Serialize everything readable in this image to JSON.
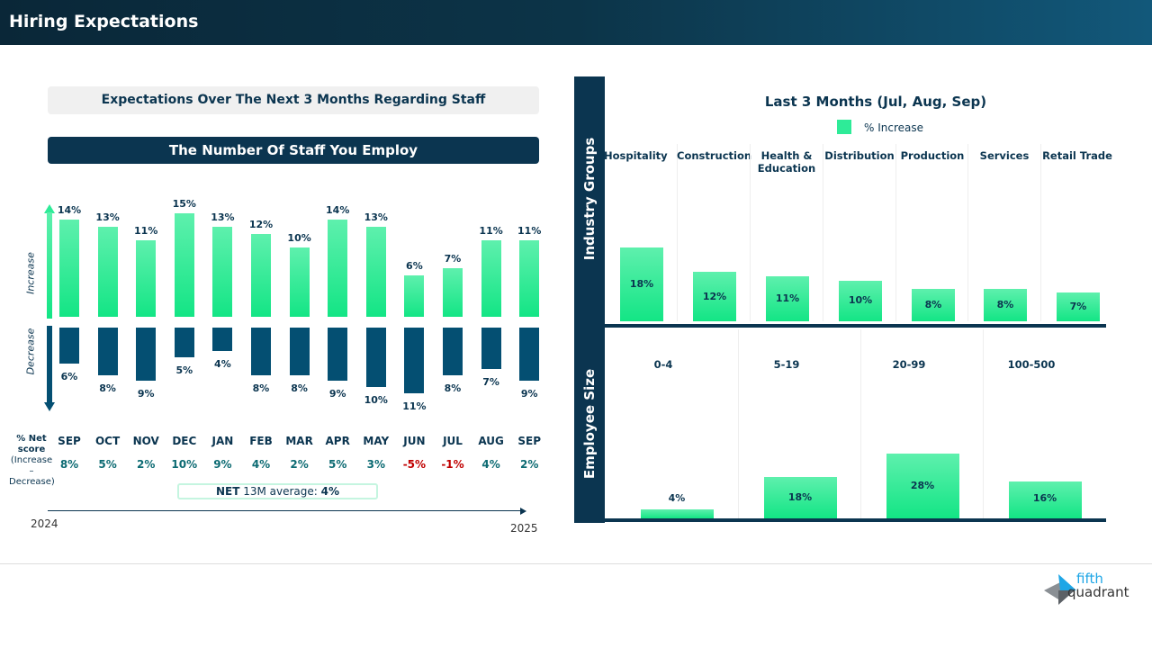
{
  "header": {
    "title": "Hiring Expectations"
  },
  "left": {
    "subtitle": "Expectations Over The Next 3 Months Regarding Staff",
    "section_title": "The Number Of Staff You Employ",
    "increase_label": "Increase",
    "decrease_label": "Decrease",
    "net_label_1": "% Net",
    "net_label_2": "score",
    "net_label_3": "(Increase –",
    "net_label_4": "Decrease)",
    "avg_prefix": "NET",
    "avg_text": " 13M average: ",
    "avg_value": "4%",
    "year_start": "2024",
    "year_end": "2025"
  },
  "chart_data": [
    {
      "type": "bar",
      "title": "The Number Of Staff You Employ",
      "categories": [
        "SEP",
        "OCT",
        "NOV",
        "DEC",
        "JAN",
        "FEB",
        "MAR",
        "APR",
        "MAY",
        "JUN",
        "JUL",
        "AUG",
        "SEP"
      ],
      "series": [
        {
          "name": "Increase",
          "values": [
            14,
            13,
            11,
            15,
            13,
            12,
            10,
            14,
            13,
            6,
            7,
            11,
            11
          ],
          "color": "#2eeb98"
        },
        {
          "name": "Decrease",
          "values": [
            6,
            8,
            9,
            5,
            4,
            8,
            8,
            9,
            10,
            11,
            8,
            7,
            9
          ],
          "color": "#044f72"
        }
      ],
      "net_score": [
        8,
        5,
        2,
        10,
        9,
        4,
        2,
        5,
        3,
        -5,
        -1,
        4,
        2
      ],
      "net_colors": {
        "positive": "#0d6b73",
        "negative": "#c00000"
      }
    },
    {
      "type": "bar",
      "title": "Last 3 Months (Jul, Aug, Sep)",
      "legend": "% Increase",
      "group_label": "Industry Groups",
      "categories": [
        "Hospitality",
        "Construction",
        "Health & Education",
        "Distribution",
        "Production",
        "Services",
        "Retail Trade"
      ],
      "values": [
        18,
        12,
        11,
        10,
        8,
        8,
        7
      ]
    },
    {
      "type": "bar",
      "group_label": "Employee Size",
      "categories": [
        "0-4",
        "5-19",
        "20-99",
        "100-500"
      ],
      "values": [
        4,
        18,
        28,
        16
      ]
    }
  ],
  "logo": {
    "line1": "fifth",
    "line2": "quadrant"
  }
}
